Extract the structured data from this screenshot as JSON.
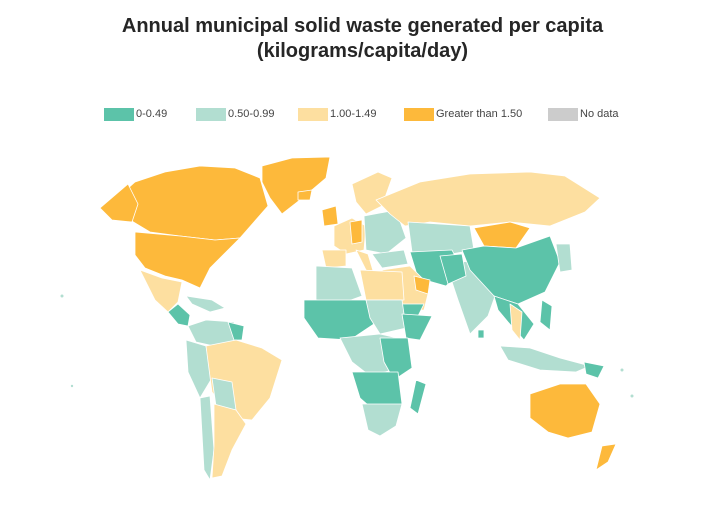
{
  "title": {
    "line1": "Annual municipal solid waste generated per capita",
    "line2": "(kilograms/capita/day)"
  },
  "legend": [
    {
      "label": "0-0.49",
      "color": "#5cc3a9"
    },
    {
      "label": "0.50-0.99",
      "color": "#b2ded1"
    },
    {
      "label": "1.00-1.49",
      "color": "#fddfa0"
    },
    {
      "label": "Greater than 1.50",
      "color": "#fdb93b"
    },
    {
      "label": "No data",
      "color": "#cccccc"
    }
  ]
}
